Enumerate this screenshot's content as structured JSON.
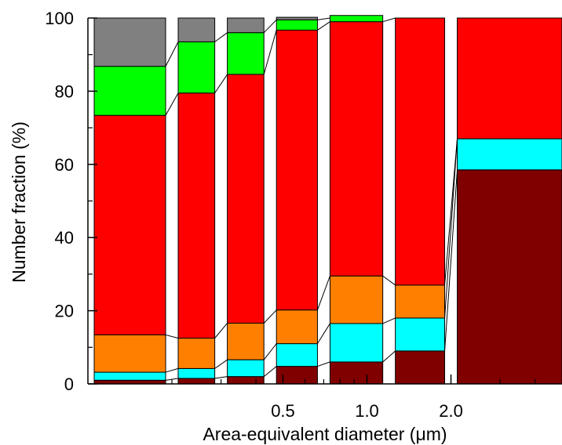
{
  "chart_data": {
    "type": "bar",
    "stacked": true,
    "title": "",
    "xlabel": "Area-equivalent diameter (μm)",
    "ylabel": "Number fraction (%)",
    "ylim": [
      0,
      100
    ],
    "xscale": "log",
    "x_tick_labels": [
      "0.5",
      "1.0",
      "2.0"
    ],
    "y_tick_labels": [
      "0",
      "20",
      "40",
      "60",
      "80",
      "100"
    ],
    "legend": "none",
    "grid": false,
    "connector_lines": true,
    "bins_um": [
      [
        0.1,
        0.2
      ],
      [
        0.2,
        0.3
      ],
      [
        0.3,
        0.45
      ],
      [
        0.45,
        0.7
      ],
      [
        0.7,
        1.2
      ],
      [
        1.2,
        2.0
      ],
      [
        2.0,
        5.0
      ]
    ],
    "series": [
      {
        "color": "#800000",
        "values": [
          1.0,
          1.5,
          2.0,
          4.8,
          6.0,
          9.0,
          58.5
        ]
      },
      {
        "color": "#00ffff",
        "values": [
          2.2,
          2.7,
          4.6,
          6.2,
          10.5,
          9.0,
          8.5
        ]
      },
      {
        "color": "#ff8000",
        "values": [
          10.2,
          8.3,
          10.0,
          9.2,
          13.0,
          9.0,
          0.0
        ]
      },
      {
        "color": "#ff0000",
        "values": [
          60.0,
          67.0,
          68.0,
          76.5,
          69.5,
          73.0,
          33.0
        ]
      },
      {
        "color": "#00ff00",
        "values": [
          13.4,
          14.0,
          11.4,
          2.8,
          1.7,
          0.0,
          0.0
        ]
      },
      {
        "color": "#808080",
        "values": [
          13.2,
          6.5,
          4.0,
          0.7,
          0.0,
          0.0,
          0.0
        ]
      }
    ]
  }
}
